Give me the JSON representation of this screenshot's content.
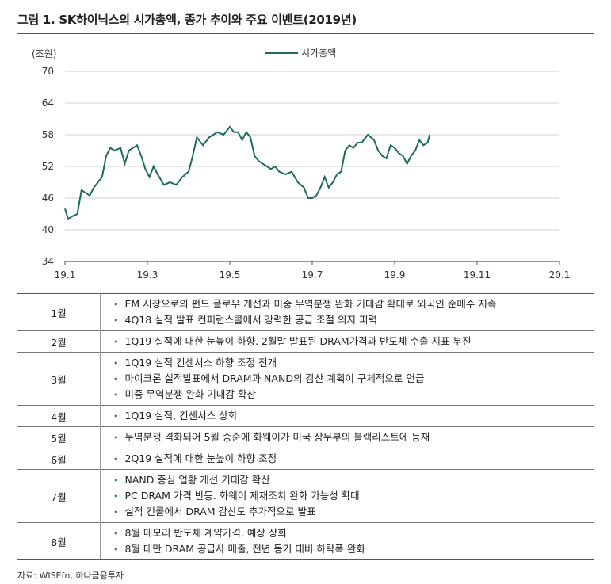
{
  "figure_title": "그림 1. SK하이닉스의 시가총액, 종가 추이와 주요 이벤트(2019년)",
  "colors": {
    "line": "#1e6a5f",
    "grid": "#cfcfcf",
    "bullet": "#1e6a5f"
  },
  "chart_data": {
    "type": "line",
    "unit_label": "(조원)",
    "ylim": [
      34,
      70
    ],
    "y_ticks": [
      "70",
      "64",
      "58",
      "52",
      "46",
      "40",
      "34"
    ],
    "x_ticks": [
      "19.1",
      "19.3",
      "19.5",
      "19.7",
      "19.9",
      "19.11",
      "20.1"
    ],
    "xlim": [
      0,
      12
    ],
    "legend_position": "top-center",
    "grid": "horizontal",
    "series": [
      {
        "name": "시가총액",
        "x": [
          0,
          0.08,
          0.16,
          0.3,
          0.4,
          0.5,
          0.6,
          0.7,
          0.8,
          0.9,
          1.0,
          1.1,
          1.2,
          1.35,
          1.45,
          1.55,
          1.65,
          1.75,
          1.85,
          1.95,
          2.05,
          2.15,
          2.25,
          2.4,
          2.55,
          2.7,
          2.85,
          3.0,
          3.1,
          3.2,
          3.35,
          3.5,
          3.6,
          3.7,
          3.85,
          4.0,
          4.1,
          4.2,
          4.3,
          4.4,
          4.5,
          4.6,
          4.7,
          4.8,
          4.9,
          5.0,
          5.1,
          5.2,
          5.35,
          5.5,
          5.65,
          5.8,
          5.9,
          6.0,
          6.1,
          6.2,
          6.3,
          6.4,
          6.5,
          6.6,
          6.7,
          6.8,
          6.9,
          7.0,
          7.1,
          7.2,
          7.35,
          7.5,
          7.6,
          7.7,
          7.8,
          7.9,
          8.0,
          8.1,
          8.2,
          8.3,
          8.4,
          8.5,
          8.6,
          8.7,
          8.8,
          8.85
        ],
        "values": [
          44.0,
          42.0,
          42.5,
          43.0,
          47.5,
          47.0,
          46.5,
          48.0,
          49.0,
          50.0,
          54.0,
          55.5,
          55.0,
          55.5,
          52.5,
          55.0,
          55.5,
          56.0,
          54.0,
          51.5,
          50.0,
          52.0,
          50.5,
          48.5,
          49.0,
          48.5,
          50.0,
          51.0,
          54.0,
          57.5,
          56.0,
          57.5,
          58.0,
          58.5,
          58.0,
          59.5,
          58.5,
          58.5,
          57.0,
          58.5,
          57.5,
          54.0,
          53.0,
          52.5,
          52.0,
          51.5,
          52.0,
          51.0,
          50.5,
          51.0,
          49.0,
          48.0,
          46.0,
          46.0,
          46.5,
          48.0,
          50.0,
          48.0,
          49.0,
          50.5,
          51.0,
          55.0,
          56.0,
          55.5,
          56.5,
          56.5,
          58.0,
          57.0,
          55.0,
          54.0,
          53.5,
          56.0,
          55.5,
          54.5,
          54.0,
          52.5,
          54.0,
          55.0,
          57.0,
          56.0,
          56.5,
          58.0
        ]
      }
    ]
  },
  "events": [
    {
      "month": "1월",
      "items": [
        "EM 시장으로의 펀드 플로우 개선과 미중 무역분쟁 완화 기대감 확대로 외국인 순매수 지속",
        "4Q18 실적 발표 컨퍼런스콜에서 강력한 공급 조절 의지 피력"
      ]
    },
    {
      "month": "2월",
      "items": [
        "1Q19 실적에 대한 눈높이 하향. 2월말 발표된 DRAM가격과 반도체 수출 지표 부진"
      ]
    },
    {
      "month": "3월",
      "items": [
        "1Q19 실적 컨센서스 하향 조정 전개",
        "마이크론 실적발표에서 DRAM과 NAND의 감산 계획이 구체적으로 언급",
        "미중 무역분쟁 완화 기대감 확산"
      ]
    },
    {
      "month": "4월",
      "items": [
        "1Q19 실적, 컨센서스 상회"
      ]
    },
    {
      "month": "5월",
      "items": [
        "무역분쟁 격화되어 5월 중순에 화웨이가 미국 상무부의 블랙리스트에 등재"
      ]
    },
    {
      "month": "6월",
      "items": [
        "2Q19 실적에 대한 눈높이 하향 조정"
      ]
    },
    {
      "month": "7월",
      "items": [
        "NAND 중심 업황 개선 기대감 확산",
        "PC DRAM 가격 반등. 화웨이 제재조치 완화 가능성 확대",
        "실적 컨콜에서 DRAM 감산도 추가적으로 발표"
      ]
    },
    {
      "month": "8월",
      "items": [
        "8월 메모리 반도체 계약가격, 예상 상회",
        "8월 대만 DRAM 공급사 매출, 전년 동기 대비 하락폭 완화"
      ]
    }
  ],
  "source": "자료: WISEfn, 하나금융투자"
}
